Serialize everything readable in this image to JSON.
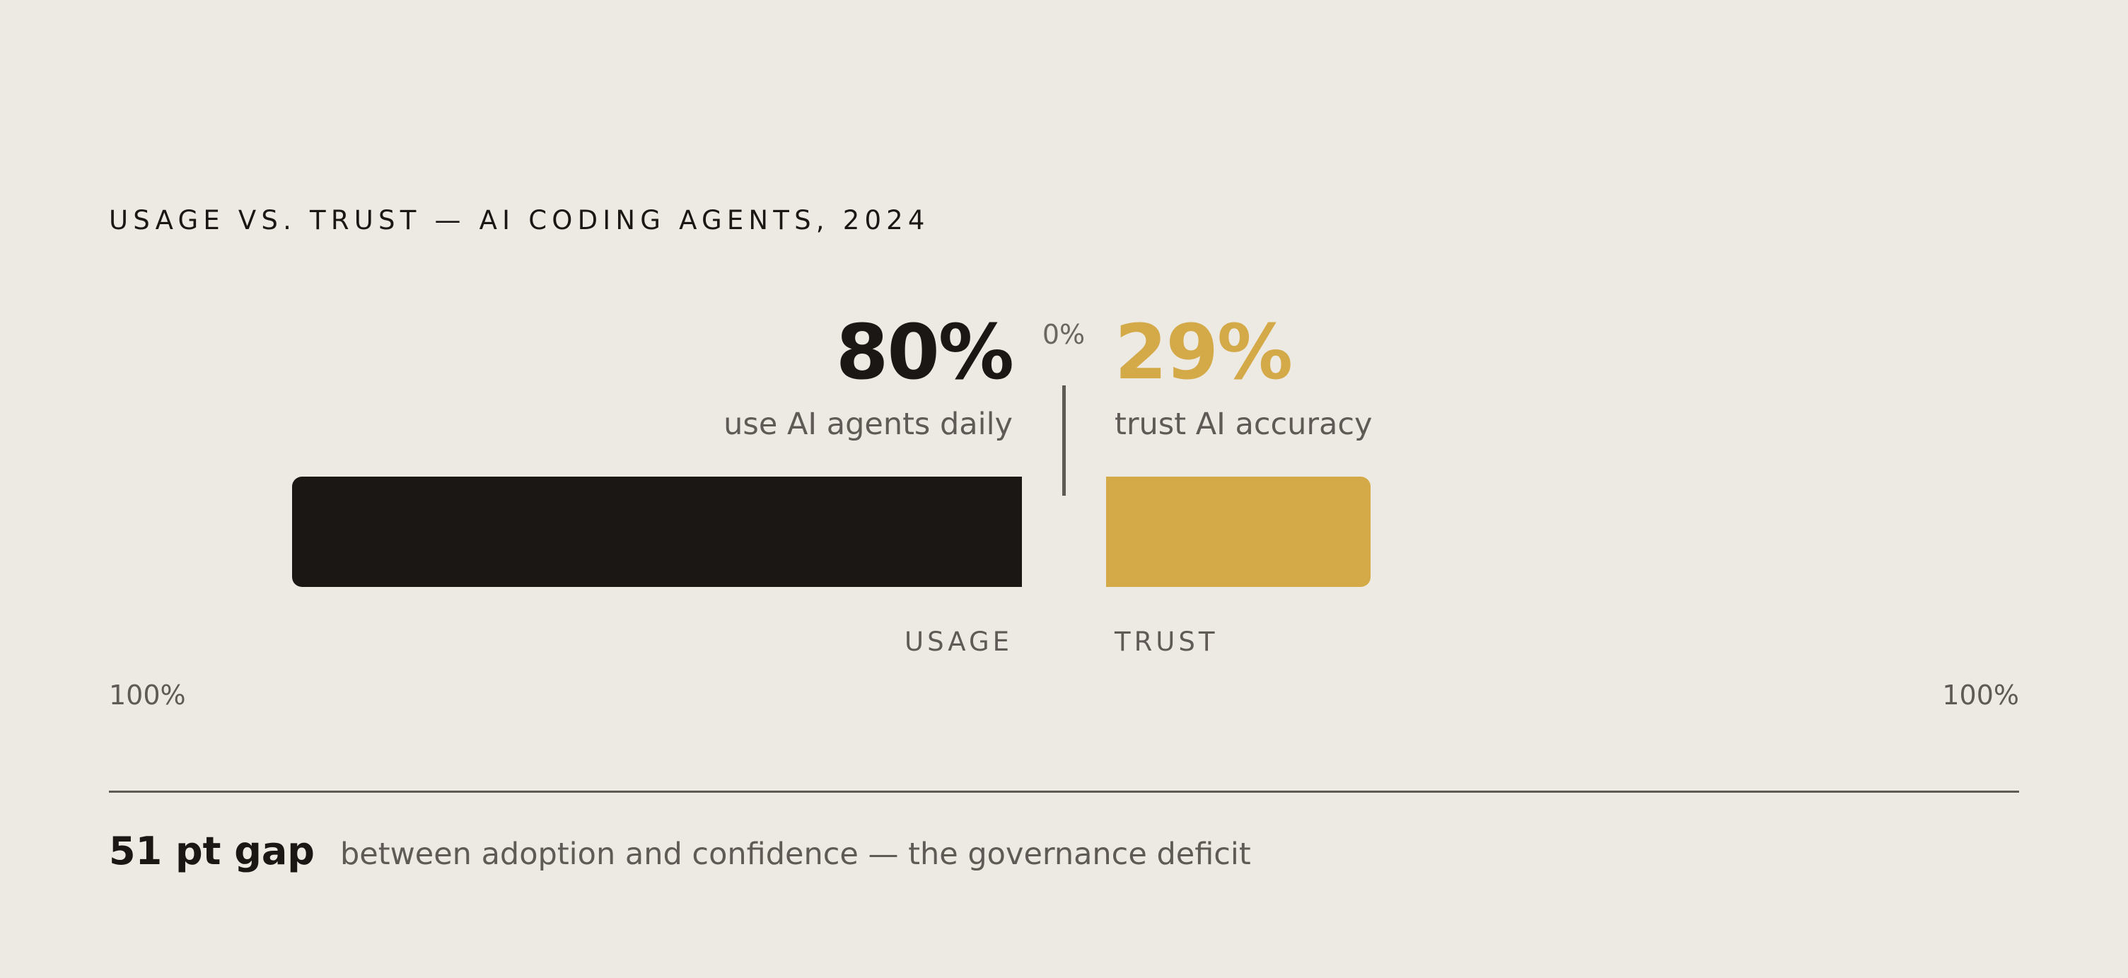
{
  "chart_data": {
    "type": "bar",
    "orientation": "horizontal-diverging",
    "title": "USAGE VS. TRUST — AI CODING AGENTS, 2024",
    "center_label": "0%",
    "axis": {
      "left_label": "100%",
      "right_label": "100%",
      "range": [
        0,
        100
      ]
    },
    "series": [
      {
        "category": "USAGE",
        "value": 80,
        "value_label": "80%",
        "description": "use AI agents daily",
        "direction": "left",
        "color": "#1B1714"
      },
      {
        "category": "TRUST",
        "value": 29,
        "value_label": "29%",
        "description": "trust AI accuracy",
        "direction": "right",
        "color": "#D4A947"
      }
    ],
    "footer": {
      "highlight": "51 pt gap",
      "text": "between adoption and confidence — the governance deficit"
    }
  }
}
